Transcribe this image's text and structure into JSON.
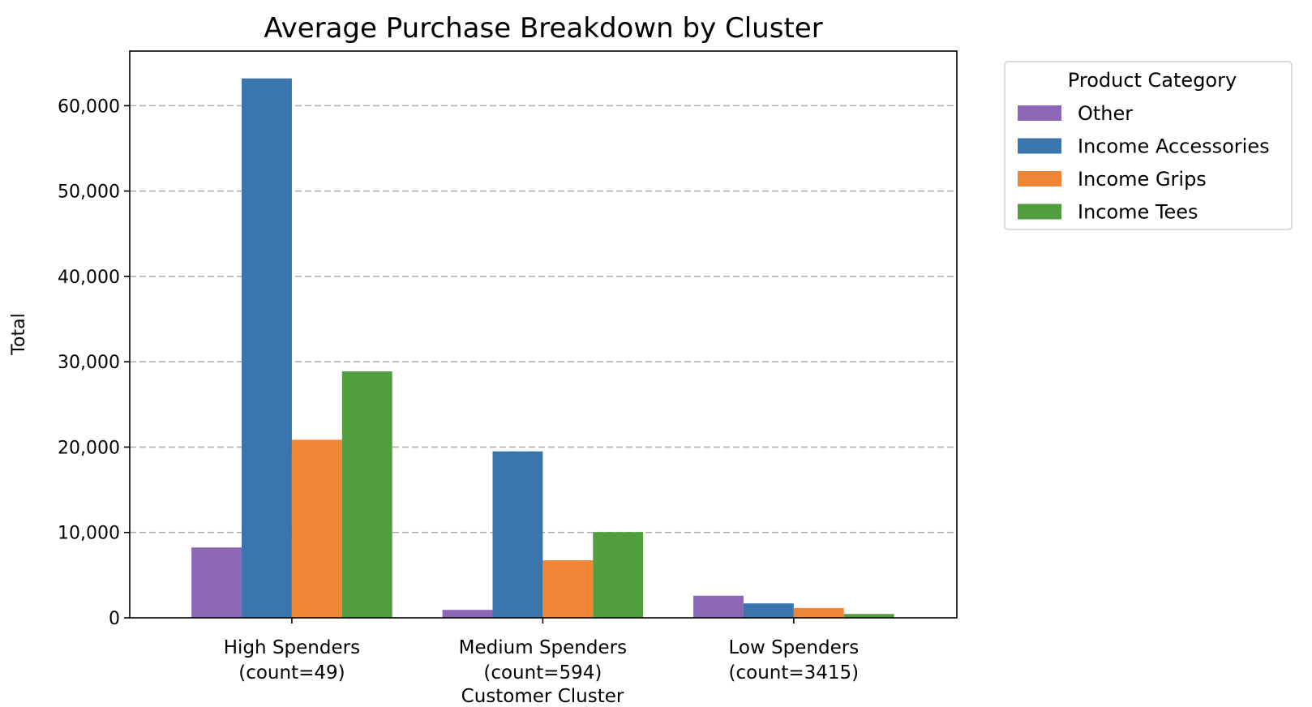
{
  "chart_data": {
    "type": "bar",
    "title": "Average Purchase Breakdown by Cluster",
    "xlabel": "Customer Cluster",
    "ylabel": "Total",
    "categories": [
      [
        "High Spenders",
        "(count=49)"
      ],
      [
        "Medium Spenders",
        "(count=594)"
      ],
      [
        "Low Spenders",
        "(count=3415)"
      ]
    ],
    "series": [
      {
        "name": "Other",
        "color": "#8c67b5",
        "values": [
          8240,
          930,
          2590
        ]
      },
      {
        "name": "Income Accessories",
        "color": "#3a75ad",
        "values": [
          63200,
          19500,
          1690
        ]
      },
      {
        "name": "Income Grips",
        "color": "#ee8636",
        "values": [
          20860,
          6740,
          1150
        ]
      },
      {
        "name": "Income Tees",
        "color": "#519e3e",
        "values": [
          28870,
          10050,
          450
        ]
      }
    ],
    "ylim": [
      0,
      66400
    ],
    "yticks": [
      0,
      10000,
      20000,
      30000,
      40000,
      50000,
      60000
    ],
    "ytick_labels": [
      "0",
      "10,000",
      "20,000",
      "30,000",
      "40,000",
      "50,000",
      "60,000"
    ],
    "grid": "y dashed",
    "legend": {
      "title": "Product Category",
      "placement": "outside-top-right"
    }
  }
}
